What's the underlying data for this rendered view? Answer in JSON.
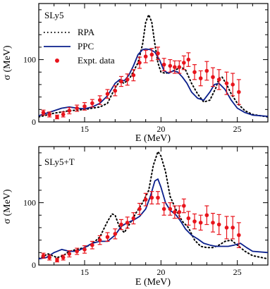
{
  "chart_data": [
    {
      "type": "line",
      "panel_label": "SLy5",
      "xlabel": "E (MeV)",
      "ylabel": "σ (MeV)",
      "xlim": [
        12,
        27
      ],
      "ylim": [
        0,
        190
      ],
      "xticks": [
        15,
        20,
        25
      ],
      "yticks": [
        0,
        100
      ],
      "legend": {
        "placement": "top-left",
        "entries": [
          "RPA",
          "PPC",
          "Expt. data"
        ]
      },
      "series": [
        {
          "name": "RPA",
          "style": "dotted",
          "color": "#000000",
          "x": [
            12,
            13,
            14,
            15,
            15.5,
            16,
            16.5,
            17,
            17.3,
            17.6,
            18,
            18.5,
            18.8,
            19.0,
            19.2,
            19.4,
            19.6,
            19.8,
            20.0,
            20.3,
            20.6,
            21,
            21.3,
            21.6,
            22,
            22.4,
            22.8,
            23.2,
            23.6,
            23.8,
            24,
            24.3,
            24.6,
            25,
            25.5,
            26,
            27
          ],
          "y": [
            8,
            14,
            18,
            20,
            22,
            24,
            30,
            55,
            65,
            62,
            72,
            95,
            125,
            160,
            172,
            160,
            125,
            95,
            80,
            78,
            80,
            84,
            88,
            84,
            62,
            45,
            32,
            35,
            55,
            70,
            72,
            60,
            45,
            30,
            18,
            12,
            8
          ]
        },
        {
          "name": "PPC",
          "style": "solid",
          "color": "#0a1f8c",
          "x": [
            12,
            12.5,
            13,
            13.5,
            14,
            14.5,
            15,
            15.5,
            16,
            16.5,
            17,
            17.3,
            17.6,
            17.9,
            18.2,
            18.5,
            18.8,
            19.0,
            19.3,
            19.6,
            19.9,
            20.2,
            20.5,
            20.8,
            21.1,
            21.4,
            21.7,
            22.0,
            22.4,
            22.8,
            23.2,
            23.5,
            23.8,
            24.2,
            24.6,
            25.0,
            25.5,
            26.0,
            27.0
          ],
          "y": [
            10,
            14,
            18,
            22,
            24,
            22,
            21,
            24,
            30,
            42,
            62,
            68,
            66,
            75,
            90,
            108,
            116,
            117,
            116,
            112,
            100,
            82,
            78,
            82,
            80,
            72,
            62,
            48,
            38,
            35,
            48,
            60,
            62,
            52,
            35,
            22,
            15,
            11,
            9
          ]
        },
        {
          "name": "Expt. data",
          "style": "markers",
          "color": "#e8141c",
          "x": [
            12.3,
            12.7,
            13.2,
            13.6,
            14.0,
            14.5,
            15.0,
            15.5,
            16.0,
            16.5,
            17.0,
            17.4,
            17.8,
            18.2,
            18.6,
            19.0,
            19.4,
            19.8,
            20.2,
            20.6,
            20.9,
            21.2,
            21.5,
            21.8,
            22.2,
            22.6,
            23.0,
            23.4,
            23.8,
            24.3,
            24.7,
            25.1
          ],
          "y": [
            15,
            12,
            8,
            12,
            18,
            22,
            25,
            30,
            35,
            45,
            50,
            65,
            68,
            75,
            95,
            105,
            108,
            110,
            92,
            90,
            88,
            88,
            95,
            100,
            80,
            70,
            82,
            72,
            68,
            62,
            60,
            48
          ],
          "err": [
            4,
            4,
            3,
            4,
            5,
            5,
            6,
            6,
            7,
            7,
            8,
            8,
            9,
            9,
            9,
            10,
            10,
            10,
            10,
            10,
            10,
            10,
            11,
            11,
            12,
            12,
            15,
            15,
            16,
            18,
            18,
            20
          ]
        }
      ]
    },
    {
      "type": "line",
      "panel_label": "SLy5+T",
      "xlabel": "E (MeV)",
      "ylabel": "σ (MeV)",
      "xlim": [
        12,
        27
      ],
      "ylim": [
        0,
        190
      ],
      "xticks": [
        15,
        20,
        25
      ],
      "yticks": [
        0,
        100
      ],
      "legend": null,
      "series": [
        {
          "name": "RPA",
          "style": "dotted",
          "color": "#000000",
          "x": [
            12,
            12.6,
            13.2,
            13.6,
            14.0,
            14.5,
            15.0,
            15.5,
            16.0,
            16.5,
            16.8,
            17.0,
            17.3,
            17.6,
            18.0,
            18.4,
            18.8,
            19.2,
            19.5,
            19.8,
            20.0,
            20.3,
            20.6,
            21.0,
            21.4,
            21.8,
            22.2,
            22.6,
            23.0,
            23.4,
            23.8,
            24.2,
            24.6,
            25.0,
            25.5,
            26.0,
            27.0
          ],
          "y": [
            10,
            18,
            12,
            15,
            22,
            25,
            28,
            34,
            45,
            70,
            82,
            80,
            60,
            52,
            68,
            85,
            100,
            120,
            160,
            182,
            175,
            150,
            110,
            88,
            70,
            60,
            40,
            30,
            28,
            28,
            32,
            38,
            40,
            32,
            22,
            15,
            10
          ]
        },
        {
          "name": "PPC",
          "style": "solid",
          "color": "#0a1f8c",
          "x": [
            12,
            12.5,
            13.0,
            13.5,
            14.0,
            14.5,
            15.0,
            15.5,
            16.0,
            16.5,
            17.0,
            17.4,
            17.8,
            18.2,
            18.6,
            19.0,
            19.3,
            19.6,
            19.8,
            20.0,
            20.3,
            20.6,
            21.0,
            21.3,
            21.6,
            22.0,
            22.4,
            22.8,
            23.2,
            23.6,
            24.0,
            24.4,
            24.8,
            25.2,
            25.6,
            26.0,
            27.0
          ],
          "y": [
            10,
            12,
            20,
            25,
            22,
            22,
            28,
            35,
            38,
            38,
            48,
            62,
            68,
            72,
            78,
            90,
            110,
            135,
            138,
            125,
            100,
            88,
            80,
            70,
            58,
            48,
            42,
            35,
            32,
            30,
            30,
            30,
            32,
            35,
            28,
            22,
            20
          ]
        },
        {
          "name": "Expt. data",
          "style": "markers",
          "color": "#e8141c",
          "x": [
            12.3,
            12.7,
            13.2,
            13.6,
            14.0,
            14.5,
            15.0,
            15.5,
            16.0,
            16.5,
            17.0,
            17.4,
            17.8,
            18.2,
            18.6,
            19.0,
            19.4,
            19.8,
            20.2,
            20.6,
            20.9,
            21.2,
            21.5,
            21.8,
            22.2,
            22.6,
            23.0,
            23.4,
            23.8,
            24.3,
            24.7,
            25.1
          ],
          "y": [
            15,
            12,
            8,
            12,
            18,
            22,
            25,
            32,
            40,
            45,
            50,
            65,
            68,
            75,
            90,
            105,
            108,
            108,
            90,
            90,
            85,
            85,
            95,
            75,
            70,
            68,
            80,
            68,
            65,
            60,
            60,
            48
          ],
          "err": [
            4,
            4,
            3,
            4,
            5,
            5,
            6,
            6,
            7,
            7,
            8,
            8,
            9,
            9,
            9,
            10,
            10,
            10,
            10,
            10,
            10,
            10,
            11,
            11,
            12,
            12,
            15,
            15,
            16,
            18,
            18,
            20
          ]
        }
      ]
    }
  ]
}
